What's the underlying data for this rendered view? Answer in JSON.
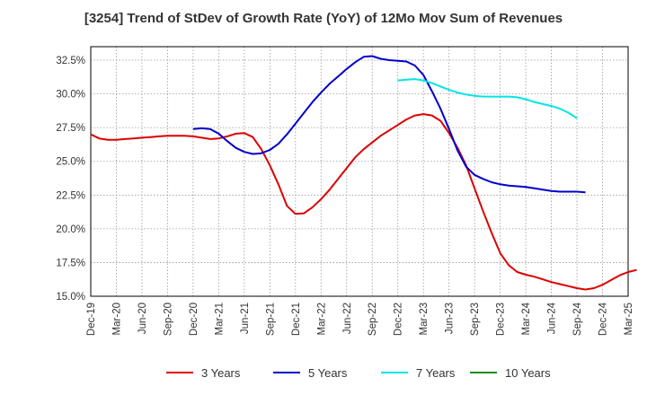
{
  "chart_data": {
    "type": "line",
    "title": "[3254]  Trend of StDev of Growth Rate (YoY) of 12Mo Mov Sum of Revenues",
    "xlabel": "",
    "ylabel": "",
    "ylim": [
      15.0,
      33.5
    ],
    "ytick_values": [
      15.0,
      17.5,
      20.0,
      22.5,
      25.0,
      27.5,
      30.0,
      32.5
    ],
    "ytick_labels": [
      "15.0%",
      "17.5%",
      "20.0%",
      "22.5%",
      "25.0%",
      "27.5%",
      "30.0%",
      "32.5%"
    ],
    "xticks": [
      "Dec-19",
      "Mar-20",
      "Jun-20",
      "Sep-20",
      "Dec-20",
      "Mar-21",
      "Jun-21",
      "Sep-21",
      "Dec-21",
      "Mar-22",
      "Jun-22",
      "Sep-22",
      "Dec-22",
      "Mar-23",
      "Jun-23",
      "Sep-23",
      "Dec-23",
      "Mar-24",
      "Jun-24",
      "Sep-24",
      "Dec-24",
      "Mar-25"
    ],
    "grid": true,
    "legend_position": "bottom",
    "series": [
      {
        "name": "3 Years",
        "color": "#dd0000",
        "start": "Dec-19",
        "values": [
          27.0,
          26.7,
          26.6,
          26.6,
          26.65,
          26.7,
          26.75,
          26.8,
          26.85,
          26.9,
          26.9,
          26.9,
          26.85,
          26.75,
          26.65,
          26.7,
          26.85,
          27.05,
          27.1,
          26.8,
          25.9,
          24.7,
          23.3,
          21.7,
          21.1,
          21.15,
          21.6,
          22.2,
          22.9,
          23.7,
          24.5,
          25.3,
          25.9,
          26.4,
          26.9,
          27.3,
          27.7,
          28.1,
          28.4,
          28.5,
          28.4,
          28.0,
          27.1,
          26.0,
          24.7,
          23.0,
          21.3,
          19.7,
          18.2,
          17.3,
          16.8,
          16.6,
          16.45,
          16.25,
          16.05,
          15.9,
          15.75,
          15.6,
          15.5,
          15.6,
          15.85,
          16.2,
          16.55,
          16.8,
          16.95
        ]
      },
      {
        "name": "5 Years",
        "color": "#0000cc",
        "start": "Dec-20",
        "values": [
          27.4,
          27.45,
          27.4,
          27.05,
          26.5,
          26.0,
          25.7,
          25.55,
          25.6,
          25.85,
          26.3,
          27.0,
          27.8,
          28.6,
          29.4,
          30.1,
          30.75,
          31.3,
          31.85,
          32.35,
          32.75,
          32.8,
          32.6,
          32.5,
          32.45,
          32.4,
          32.1,
          31.4,
          30.2,
          28.9,
          27.4,
          25.8,
          24.6,
          24.0,
          23.7,
          23.45,
          23.3,
          23.2,
          23.15,
          23.1,
          23.0,
          22.9,
          22.8,
          22.75,
          22.75,
          22.75,
          22.7
        ]
      },
      {
        "name": "7 Years",
        "color": "#00e5e5",
        "start": "Dec-22",
        "values": [
          31.0,
          31.05,
          31.1,
          31.0,
          30.8,
          30.55,
          30.3,
          30.1,
          29.95,
          29.85,
          29.8,
          29.8,
          29.8,
          29.8,
          29.75,
          29.6,
          29.4,
          29.25,
          29.1,
          28.9,
          28.6,
          28.2
        ]
      },
      {
        "name": "10 Years",
        "color": "#228b22",
        "start": "Dec-24",
        "values": []
      }
    ]
  }
}
